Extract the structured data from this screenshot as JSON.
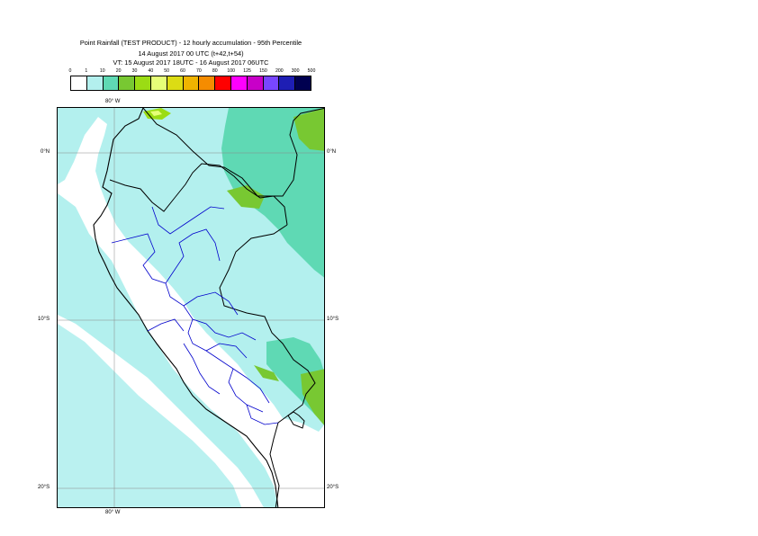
{
  "title": {
    "line1": "Point Rainfall (TEST PRODUCT) - 12 hourly accumulation - 95th Percentile",
    "line2": "14 August 2017 00 UTC (t+42,t+54)",
    "line3": "VT: 15 August 2017 18UTC - 16 August 2017 06UTC"
  },
  "legend": {
    "thresholds": [
      "0",
      "1",
      "10",
      "20",
      "30",
      "40",
      "50",
      "60",
      "70",
      "80",
      "100",
      "125",
      "150",
      "200",
      "300",
      "500"
    ],
    "colors": [
      "#ffffff",
      "#b3f0ee",
      "#5fd9b4",
      "#78c832",
      "#9bdc14",
      "#e6ff78",
      "#dcdc14",
      "#f0b400",
      "#f58c00",
      "#ff0000",
      "#ff00ff",
      "#c800c8",
      "#7846ff",
      "#1e1eb4",
      "#000050"
    ]
  },
  "map": {
    "lon_labels": {
      "top": "80° W",
      "bottom": "80° W"
    },
    "lat_labels": {
      "eq_left": "0°N",
      "eq_right": "0°N",
      "s10_left": "10°S",
      "s10_right": "10°S",
      "s20_left": "20°S",
      "s20_right": "20°S"
    },
    "colors": {
      "light": "#b3f0ee",
      "medium": "#5fd9b4",
      "heavy": "#78c832",
      "lime": "#9bdc14",
      "yellow": "#e6ff78",
      "country_border": "#000000",
      "region_border": "#0000cc",
      "grid": "#888888"
    }
  }
}
